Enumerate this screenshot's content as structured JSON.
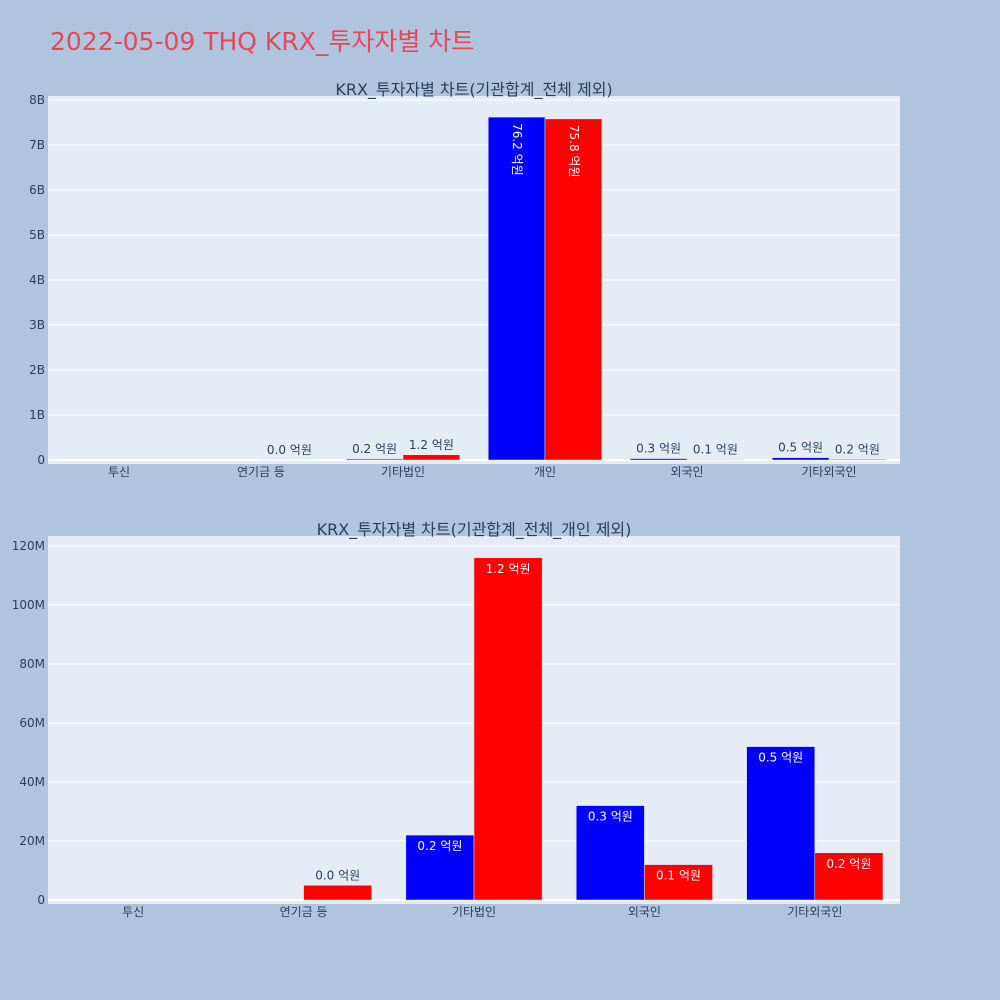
{
  "page": {
    "title": "2022-05-09 THQ KRX_투자자별 차트"
  },
  "colors": {
    "buy": "#0000ff",
    "sell": "#ff0000",
    "plot_bg": "#e5ecf6",
    "page_bg": "#b0c4de",
    "title": "#e8475a"
  },
  "chart_data": [
    {
      "type": "bar",
      "title": "KRX_투자자별 차트(기관합계_전체 제외)",
      "categories": [
        "투신",
        "연기금 등",
        "기타법인",
        "개인",
        "외국인",
        "기타외국인"
      ],
      "series": [
        {
          "color": "#0000ff",
          "values": [
            0,
            0,
            22000000,
            7620000000,
            32000000,
            52000000
          ],
          "labels": [
            "",
            "",
            "0.2 억원",
            "76.2 억원",
            "0.3 억원",
            "0.5 억원"
          ]
        },
        {
          "color": "#ff0000",
          "values": [
            0,
            5000000,
            116000000,
            7580000000,
            12000000,
            16000000
          ],
          "labels": [
            "",
            "0.0 억원",
            "1.2 억원",
            "75.8 억원",
            "0.1 억원",
            "0.2 억원"
          ]
        }
      ],
      "ylim": [
        0,
        8000000000
      ],
      "yticks": [
        0,
        1000000000,
        2000000000,
        3000000000,
        4000000000,
        5000000000,
        6000000000,
        7000000000,
        8000000000
      ],
      "ytick_labels": [
        "0",
        "1B",
        "2B",
        "3B",
        "4B",
        "5B",
        "6B",
        "7B",
        "8B"
      ],
      "xlabel": "",
      "ylabel": "",
      "grid": true
    },
    {
      "type": "bar",
      "title": "KRX_투자자별 차트(기관합계_전체_개인 제외)",
      "categories": [
        "투신",
        "연기금 등",
        "기타법인",
        "외국인",
        "기타외국인"
      ],
      "series": [
        {
          "color": "#0000ff",
          "values": [
            0,
            0,
            22000000,
            32000000,
            52000000
          ],
          "labels": [
            "",
            "",
            "0.2 억원",
            "0.3 억원",
            "0.5 억원"
          ]
        },
        {
          "color": "#ff0000",
          "values": [
            0,
            5000000,
            116000000,
            12000000,
            16000000
          ],
          "labels": [
            "",
            "0.0 억원",
            "1.2 억원",
            "0.1 억원",
            "0.2 억원"
          ]
        }
      ],
      "ylim": [
        0,
        120000000
      ],
      "yticks": [
        0,
        20000000,
        40000000,
        60000000,
        80000000,
        100000000,
        120000000
      ],
      "ytick_labels": [
        "0",
        "20M",
        "40M",
        "60M",
        "80M",
        "100M",
        "120M"
      ],
      "xlabel": "",
      "ylabel": "",
      "grid": true
    }
  ]
}
